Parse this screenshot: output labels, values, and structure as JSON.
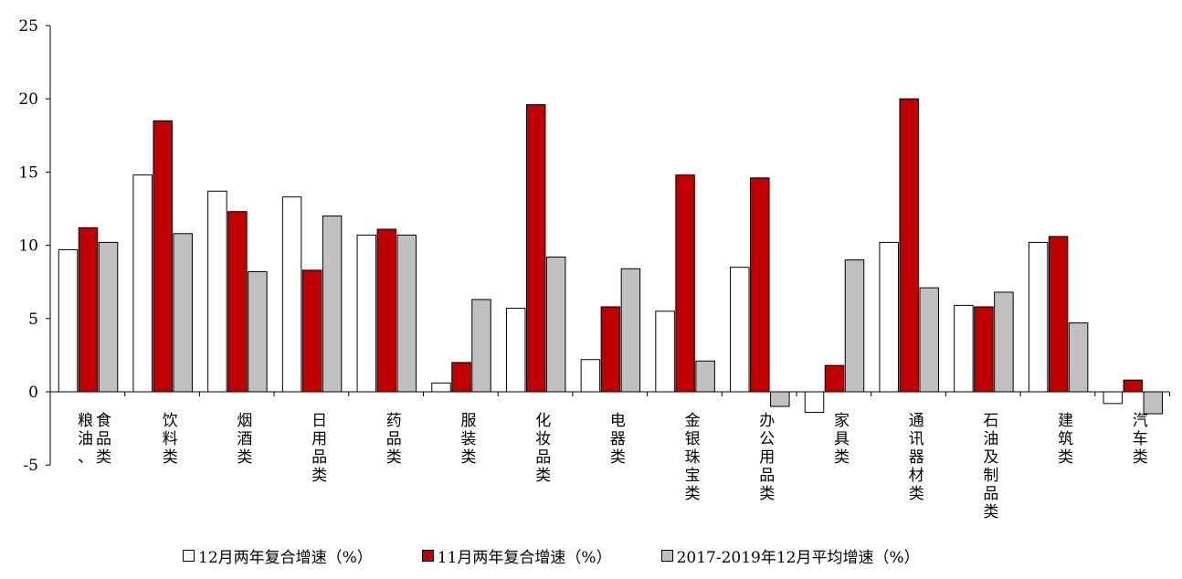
{
  "chart_data": {
    "type": "bar",
    "categories": [
      "粮油、食品类",
      "饮料类",
      "烟酒类",
      "日用品类",
      "药品类",
      "服装类",
      "化妆品类",
      "电器类",
      "金银珠宝类",
      "办公用品类",
      "家具类",
      "通讯器材类",
      "石油及制品类",
      "建筑类",
      "汽车类"
    ],
    "series": [
      {
        "name": "12月两年复合增速（%）",
        "color": "#ffffff",
        "values": [
          9.7,
          14.8,
          13.7,
          13.3,
          10.7,
          0.6,
          5.7,
          2.2,
          5.5,
          8.5,
          -1.4,
          10.2,
          5.9,
          10.2,
          -0.8
        ]
      },
      {
        "name": "11月两年复合增速（%）",
        "color": "#c00000",
        "values": [
          11.2,
          18.5,
          12.3,
          8.3,
          11.1,
          2.0,
          19.6,
          5.8,
          14.8,
          14.6,
          1.8,
          20.0,
          5.8,
          10.6,
          0.8
        ]
      },
      {
        "name": "2017-2019年12月平均增速（%）",
        "color": "#c0c0c0",
        "values": [
          10.2,
          10.8,
          8.2,
          12.0,
          10.7,
          6.3,
          9.2,
          8.4,
          2.1,
          -1.0,
          9.0,
          7.1,
          6.8,
          4.7,
          -1.5
        ]
      }
    ],
    "yticks": [
      "25",
      "20",
      "15",
      "10",
      "5",
      "0",
      "-5"
    ],
    "ylim": [
      -5,
      25
    ],
    "grid": false,
    "legend_position": "bottom"
  }
}
